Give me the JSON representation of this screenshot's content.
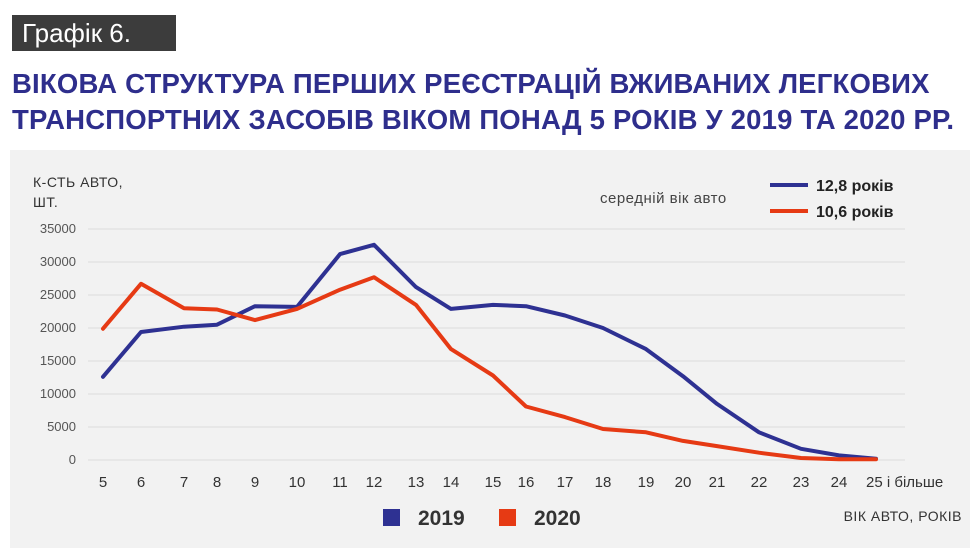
{
  "header": {
    "badge": "Графік 6.",
    "title_line1": "ВІКОВА СТРУКТУРА ПЕРШИХ РЕЄСТРАЦІЙ ВЖИВАНИХ ЛЕГКОВИХ",
    "title_line2": "ТРАНСПОРТНИХ ЗАСОБІВ ВІКОМ ПОНАД 5 РОКІВ У 2019 ТА 2020 РР."
  },
  "chart_data": {
    "type": "line",
    "ylabel_line1": "К-СТЬ АВТО,",
    "ylabel_line2": "ШТ.",
    "xlabel": "ВІК АВТО, РОКІВ",
    "ylim": [
      0,
      35000
    ],
    "yticks": [
      "35000",
      "30000",
      "25000",
      "20000",
      "15000",
      "10000",
      "5000",
      "0"
    ],
    "categories": [
      "5",
      "6",
      "7",
      "8",
      "9",
      "10",
      "11",
      "12",
      "13",
      "14",
      "15",
      "16",
      "17",
      "18",
      "19",
      "20",
      "21",
      "22",
      "23",
      "24",
      "25 і більше"
    ],
    "grid": "horizontal",
    "legend_position": "bottom",
    "avg_age_title": "середній вік авто",
    "series": [
      {
        "name": "2019",
        "color": "#2e3192",
        "avg_age": "12,8 років",
        "values": [
          12600,
          19400,
          20200,
          20500,
          23300,
          23200,
          31200,
          32600,
          26200,
          22900,
          23500,
          23300,
          21900,
          20000,
          16800,
          12700,
          8500,
          4200,
          1700,
          700,
          200
        ]
      },
      {
        "name": "2020",
        "color": "#e63a14",
        "avg_age": "10,6 років",
        "values": [
          19900,
          26700,
          23000,
          22800,
          21200,
          22900,
          25800,
          27700,
          23500,
          16800,
          12800,
          8100,
          6500,
          4700,
          4200,
          2900,
          2100,
          1100,
          300,
          100,
          100
        ]
      }
    ]
  }
}
